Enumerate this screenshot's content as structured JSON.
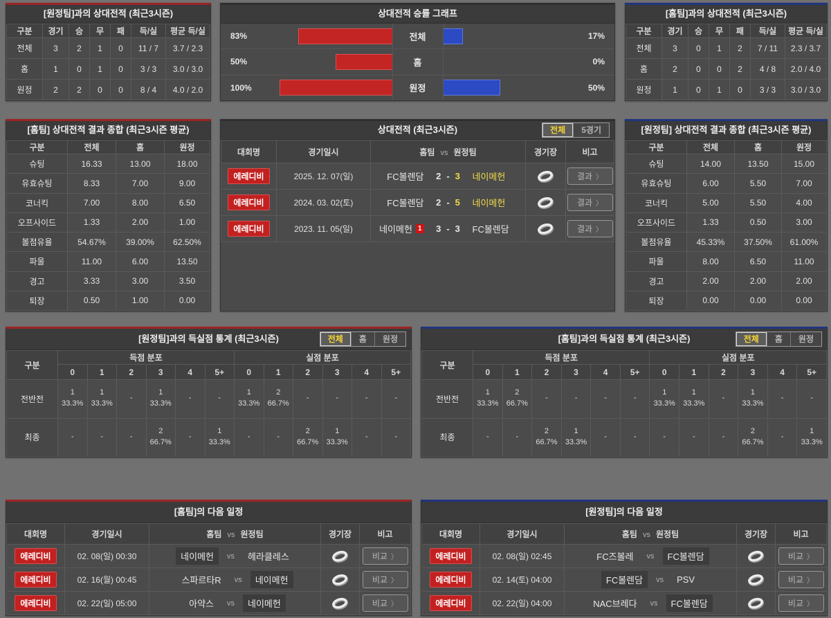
{
  "colors": {
    "accent_red": "#9e2323",
    "accent_blue": "#20357f",
    "bar_red": "#c32424",
    "bar_blue": "#2b4ac4",
    "winner_yellow": "#f0d94a",
    "badge_red": "#c32020"
  },
  "icons": {
    "chevron_right": "〉",
    "stadium": "stadium-icon"
  },
  "top_left": {
    "title": "[원정팀]과의 상대전적 (최근3시즌)",
    "headers": [
      "구분",
      "경기",
      "승",
      "무",
      "패",
      "득/실",
      "평균 득/실"
    ],
    "rows": [
      [
        "전체",
        "3",
        "2",
        "1",
        "0",
        "11 / 7",
        "3.7 / 2.3"
      ],
      [
        "홈",
        "1",
        "0",
        "1",
        "0",
        "3 / 3",
        "3.0 / 3.0"
      ],
      [
        "원정",
        "2",
        "2",
        "0",
        "0",
        "8 / 4",
        "4.0 / 2.0"
      ]
    ]
  },
  "chart": {
    "title": "상대전적 승률 그래프",
    "rows": [
      {
        "label": "전체",
        "left_label": "83%",
        "right_label": "17%",
        "left_pct": 83,
        "right_pct": 17
      },
      {
        "label": "홈",
        "left_label": "50%",
        "right_label": "0%",
        "left_pct": 50,
        "right_pct": 0
      },
      {
        "label": "원정",
        "left_label": "100%",
        "right_label": "50%",
        "left_pct": 100,
        "right_pct": 50
      }
    ]
  },
  "chart_data": {
    "type": "bar",
    "title": "상대전적 승률 그래프",
    "categories": [
      "전체",
      "홈",
      "원정"
    ],
    "series": [
      {
        "name": "홈팀 승률(적색)",
        "color": "#c32424",
        "values": [
          83,
          50,
          100
        ]
      },
      {
        "name": "원정팀 승률(청색)",
        "color": "#2b4ac4",
        "values": [
          17,
          0,
          50
        ]
      }
    ],
    "unit": "%",
    "xlim": [
      0,
      100
    ],
    "legend": "none",
    "grid": false
  },
  "top_right": {
    "title": "[홈팀]과의 상대전적 (최근3시즌)",
    "headers": [
      "구분",
      "경기",
      "승",
      "무",
      "패",
      "득/실",
      "평균 득/실"
    ],
    "rows": [
      [
        "전체",
        "3",
        "0",
        "1",
        "2",
        "7 / 11",
        "2.3 / 3.7"
      ],
      [
        "홈",
        "2",
        "0",
        "0",
        "2",
        "4 / 8",
        "2.0 / 4.0"
      ],
      [
        "원정",
        "1",
        "0",
        "1",
        "0",
        "3 / 3",
        "3.0 / 3.0"
      ]
    ]
  },
  "home_summary": {
    "title": "[홈팀] 상대전적 결과 종합 (최근3시즌 평균)",
    "headers": [
      "구분",
      "전체",
      "홈",
      "원정"
    ],
    "rows": [
      [
        "슈팅",
        "16.33",
        "13.00",
        "18.00"
      ],
      [
        "유효슈팅",
        "8.33",
        "7.00",
        "9.00"
      ],
      [
        "코너킥",
        "7.00",
        "8.00",
        "6.50"
      ],
      [
        "오프사이드",
        "1.33",
        "2.00",
        "1.00"
      ],
      [
        "볼점유율",
        "54.67%",
        "39.00%",
        "62.50%"
      ],
      [
        "파울",
        "11.00",
        "6.00",
        "13.50"
      ],
      [
        "경고",
        "3.33",
        "3.00",
        "3.50"
      ],
      [
        "퇴장",
        "0.50",
        "1.00",
        "0.00"
      ]
    ]
  },
  "away_summary": {
    "title": "[원정팀] 상대전적 결과 종합 (최근3시즌 평균)",
    "headers": [
      "구분",
      "전체",
      "홈",
      "원정"
    ],
    "rows": [
      [
        "슈팅",
        "14.00",
        "13.50",
        "15.00"
      ],
      [
        "유효슈팅",
        "6.00",
        "5.50",
        "7.00"
      ],
      [
        "코너킥",
        "5.00",
        "5.50",
        "4.00"
      ],
      [
        "오프사이드",
        "1.33",
        "0.50",
        "3.00"
      ],
      [
        "볼점유율",
        "45.33%",
        "37.50%",
        "61.00%"
      ],
      [
        "파울",
        "8.00",
        "6.50",
        "11.00"
      ],
      [
        "경고",
        "2.00",
        "2.00",
        "2.00"
      ],
      [
        "퇴장",
        "0.00",
        "0.00",
        "0.00"
      ]
    ]
  },
  "matches": {
    "title": "상대전적 (최근3시즌)",
    "tabs": [
      "전체",
      "5경기"
    ],
    "headers": {
      "comp": "대회명",
      "date": "경기일시",
      "home": "홈팀",
      "vs": "vs",
      "away": "원정팀",
      "stadium": "경기장",
      "note": "비고"
    },
    "button_label": "결과",
    "score_sep": "-",
    "rows": [
      {
        "comp": "에레디비",
        "date": "2025. 12. 07(일)",
        "home": "FC볼렌담",
        "home_score": "2",
        "away_score": "3",
        "away": "네이메헌"
      },
      {
        "comp": "에레디비",
        "date": "2024. 03. 02(토)",
        "home": "FC볼렌담",
        "home_score": "2",
        "away_score": "5",
        "away": "네이메헌"
      },
      {
        "comp": "에레디비",
        "date": "2023. 11. 05(일)",
        "home": "네이메헌",
        "home_badge": "1",
        "home_score": "3",
        "away_score": "3",
        "away": "FC볼렌담"
      }
    ]
  },
  "goals_left": {
    "title": "[원정팀]과의 득실점 통계 (최근3시즌)",
    "tabs": [
      "전체",
      "홈",
      "원정"
    ],
    "col_label": "구분",
    "scored_header": "득점 분포",
    "conceded_header": "실점 분포",
    "bins": [
      "0",
      "1",
      "2",
      "3",
      "4",
      "5+"
    ],
    "rows": [
      {
        "label": "전반전",
        "scored": [
          "1\n33.3%",
          "1\n33.3%",
          "-",
          "1\n33.3%",
          "-",
          "-"
        ],
        "conceded": [
          "1\n33.3%",
          "2\n66.7%",
          "-",
          "-",
          "-",
          "-"
        ]
      },
      {
        "label": "최종",
        "scored": [
          "-",
          "-",
          "-",
          "2\n66.7%",
          "-",
          "1\n33.3%"
        ],
        "conceded": [
          "-",
          "-",
          "2\n66.7%",
          "1\n33.3%",
          "-",
          "-"
        ]
      }
    ]
  },
  "goals_right": {
    "title": "[홈팀]과의 득실점 통계 (최근3시즌)",
    "tabs": [
      "전체",
      "홈",
      "원정"
    ],
    "col_label": "구분",
    "scored_header": "득점 분포",
    "conceded_header": "실점 분포",
    "bins": [
      "0",
      "1",
      "2",
      "3",
      "4",
      "5+"
    ],
    "rows": [
      {
        "label": "전반전",
        "scored": [
          "1\n33.3%",
          "2\n66.7%",
          "-",
          "-",
          "-",
          "-"
        ],
        "conceded": [
          "1\n33.3%",
          "1\n33.3%",
          "-",
          "1\n33.3%",
          "-",
          "-"
        ]
      },
      {
        "label": "최종",
        "scored": [
          "-",
          "-",
          "2\n66.7%",
          "1\n33.3%",
          "-",
          "-"
        ],
        "conceded": [
          "-",
          "-",
          "-",
          "2\n66.7%",
          "-",
          "1\n33.3%"
        ]
      }
    ]
  },
  "sched_left": {
    "title": "[홈팀]의 다음 일정",
    "headers": {
      "comp": "대회명",
      "date": "경기일시",
      "home": "홈팀",
      "vs": "vs",
      "away": "원정팀",
      "stadium": "경기장",
      "note": "비고"
    },
    "button_label": "비교",
    "vs_label": "vs",
    "rows": [
      {
        "comp": "에레디비",
        "date": "02. 08(일) 00:30",
        "home": "네이메헌",
        "away": "헤라클레스"
      },
      {
        "comp": "에레디비",
        "date": "02. 16(월) 00:45",
        "home": "스파르타R",
        "away": "네이메헌"
      },
      {
        "comp": "에레디비",
        "date": "02. 22(일) 05:00",
        "home": "아약스",
        "away": "네이메헌"
      }
    ]
  },
  "sched_right": {
    "title": "[원정팀]의 다음 일정",
    "headers": {
      "comp": "대회명",
      "date": "경기일시",
      "home": "홈팀",
      "vs": "vs",
      "away": "원정팀",
      "stadium": "경기장",
      "note": "비고"
    },
    "button_label": "비교",
    "vs_label": "vs",
    "rows": [
      {
        "comp": "에레디비",
        "date": "02. 08(일) 02:45",
        "home": "FC즈볼레",
        "away": "FC볼렌담"
      },
      {
        "comp": "에레디비",
        "date": "02. 14(토) 04:00",
        "home": "FC볼렌담",
        "away": "PSV"
      },
      {
        "comp": "에레디비",
        "date": "02. 22(일) 04:00",
        "home": "NAC브레다",
        "away": "FC볼렌담"
      }
    ]
  }
}
